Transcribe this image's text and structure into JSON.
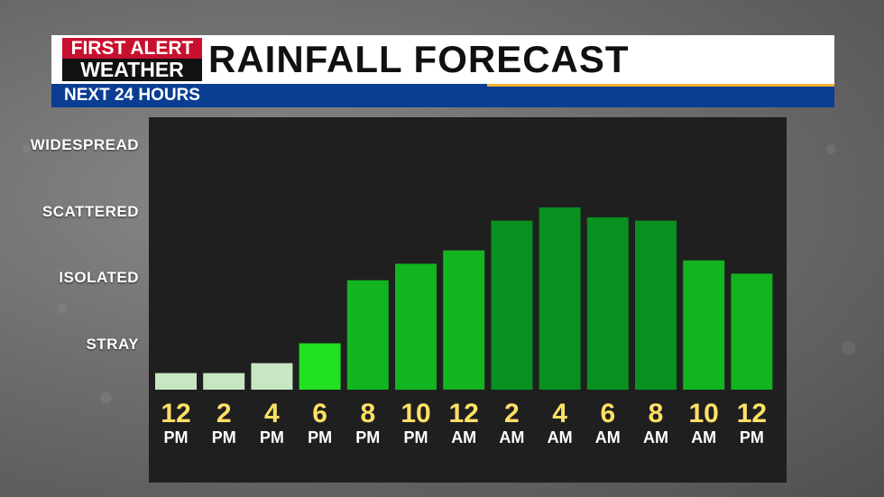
{
  "header": {
    "logo_top": "FIRST ALERT",
    "logo_bottom": "WEATHER",
    "title": "RAINFALL FORECAST",
    "subtitle": "NEXT 24 HOURS"
  },
  "colors": {
    "panel": "#1f1f1f",
    "hour_text": "#ffe066",
    "ampm_text": "#ffffff",
    "bar_light": "#c8e6c2",
    "bar_bright": "#22e022",
    "bar_mid": "#12b41f",
    "bar_dark": "#089020"
  },
  "chart_data": {
    "type": "bar",
    "title": "RAINFALL FORECAST",
    "subtitle": "NEXT 24 HOURS",
    "y_categories": [
      "STRAY",
      "ISOLATED",
      "SCATTERED",
      "WIDESPREAD"
    ],
    "ylim": [
      0,
      4
    ],
    "grid": false,
    "categories": [
      {
        "hour": "12",
        "ampm": "PM"
      },
      {
        "hour": "2",
        "ampm": "PM"
      },
      {
        "hour": "4",
        "ampm": "PM"
      },
      {
        "hour": "6",
        "ampm": "PM"
      },
      {
        "hour": "8",
        "ampm": "PM"
      },
      {
        "hour": "10",
        "ampm": "PM"
      },
      {
        "hour": "12",
        "ampm": "AM"
      },
      {
        "hour": "2",
        "ampm": "AM"
      },
      {
        "hour": "4",
        "ampm": "AM"
      },
      {
        "hour": "6",
        "ampm": "AM"
      },
      {
        "hour": "8",
        "ampm": "AM"
      },
      {
        "hour": "10",
        "ampm": "AM"
      },
      {
        "hour": "12",
        "ampm": "PM"
      }
    ],
    "values": [
      0.25,
      0.25,
      0.4,
      0.7,
      1.65,
      1.9,
      2.1,
      2.55,
      2.75,
      2.6,
      2.55,
      1.95,
      1.75
    ],
    "bar_color_keys": [
      "bar_light",
      "bar_light",
      "bar_light",
      "bar_bright",
      "bar_mid",
      "bar_mid",
      "bar_mid",
      "bar_dark",
      "bar_dark",
      "bar_dark",
      "bar_dark",
      "bar_mid",
      "bar_mid"
    ]
  }
}
